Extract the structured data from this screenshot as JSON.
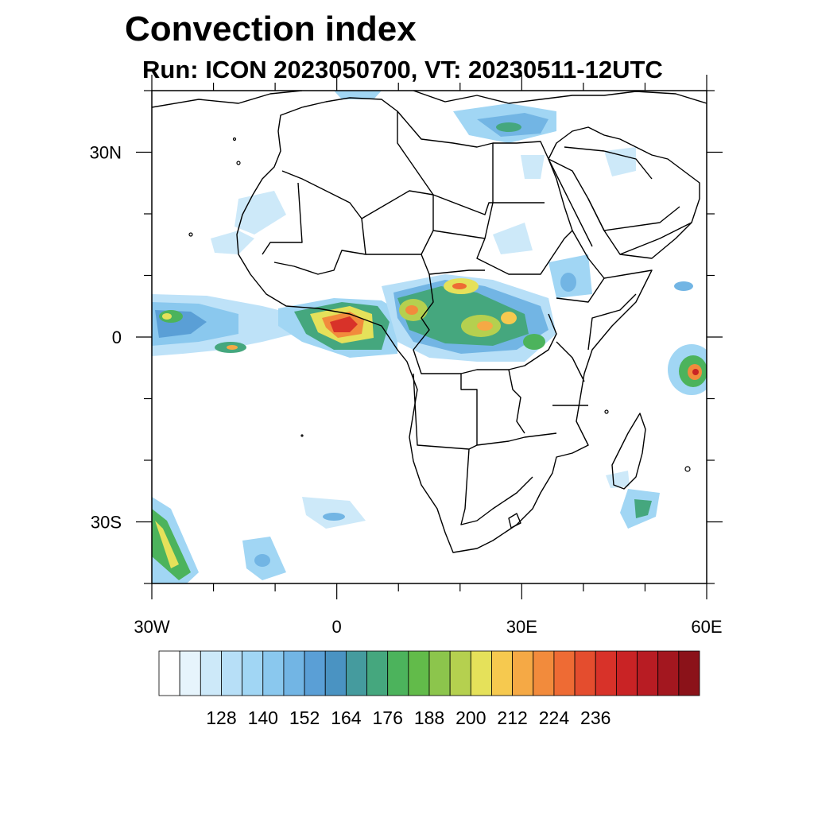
{
  "title": "Convection index",
  "subtitle": "Run: ICON 2023050700,  VT: 20230511-12UTC",
  "lat_ticks": [
    {
      "label": "30N",
      "lat": 30
    },
    {
      "label": "0",
      "lat": 0
    },
    {
      "label": "30S",
      "lat": -30
    }
  ],
  "lon_ticks": [
    {
      "label": "30W",
      "lon": -30
    },
    {
      "label": "0",
      "lon": 0
    },
    {
      "label": "30E",
      "lon": 30
    },
    {
      "label": "60E",
      "lon": 60
    }
  ],
  "map_extent": {
    "lon_min": -30,
    "lon_max": 60,
    "lat_min": -40,
    "lat_max": 40
  },
  "colorbar": {
    "labels": [
      "128",
      "140",
      "152",
      "164",
      "176",
      "188",
      "200",
      "212",
      "224",
      "236"
    ],
    "colors": [
      "#ffffff",
      "#e6f4fc",
      "#cde9f9",
      "#b7dff7",
      "#a1d6f4",
      "#8ac8ee",
      "#72b5e4",
      "#5a9fd6",
      "#4a93c2",
      "#459b9e",
      "#45a77e",
      "#4cb35c",
      "#62bb4a",
      "#8cc54c",
      "#b5d04f",
      "#e5e15a",
      "#f6c94f",
      "#f5a945",
      "#f28b3c",
      "#ee6b34",
      "#e44d2e",
      "#d83229",
      "#c92325",
      "#b81c23",
      "#a3171f",
      "#8b1219"
    ]
  }
}
